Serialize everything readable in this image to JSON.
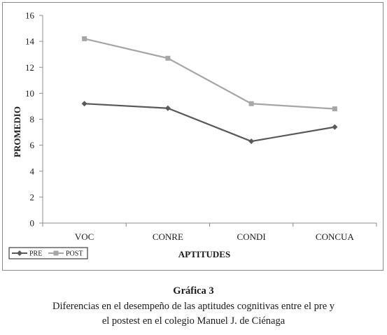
{
  "chart_data": {
    "type": "line",
    "categories": [
      "VOC",
      "CONRE",
      "CONDI",
      "CONCUA"
    ],
    "series": [
      {
        "name": "PRE",
        "values": [
          9.2,
          8.85,
          6.3,
          7.4
        ],
        "color": "#595959",
        "marker": "diamond"
      },
      {
        "name": "POST",
        "values": [
          14.2,
          12.7,
          9.2,
          8.8
        ],
        "color": "#a6a6a6",
        "marker": "square"
      }
    ],
    "yticks": [
      "0",
      "2",
      "4",
      "6",
      "8",
      "10",
      "12",
      "14",
      "16"
    ],
    "ylim": [
      0,
      16
    ],
    "xlabel": "APTITUDES",
    "ylabel": "PROMEDIO",
    "grid": false,
    "legend": "bottom-left",
    "axis_color": "#8c8c8c"
  },
  "caption": {
    "title": "Gráfica 3",
    "line1": "Diferencias en el desempeño de las aptitudes cognitivas entre el pre y",
    "line2": "el postest en el colegio Manuel J. de Ciénaga"
  }
}
